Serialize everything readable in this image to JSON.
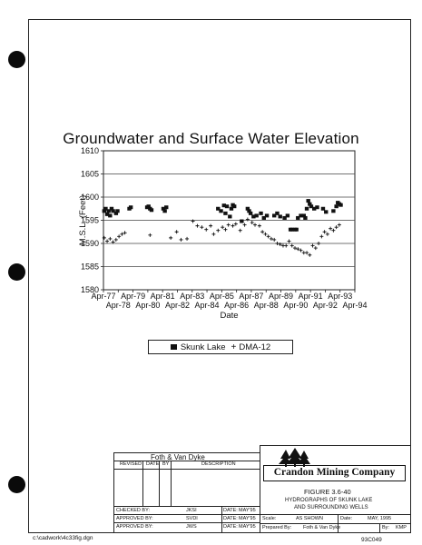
{
  "chart_data": {
    "type": "scatter",
    "title": "Groundwater and Surface Water Elevation",
    "xlabel": "Date",
    "ylabel": "M.S.L. (Feet)",
    "ylim": [
      1580,
      1610
    ],
    "yticks": [
      1580,
      1585,
      1590,
      1595,
      1600,
      1605,
      1610
    ],
    "xlim": [
      "Apr-77",
      "Apr-94"
    ],
    "xticks_upper": [
      "Apr-77",
      "Apr-79",
      "Apr-81",
      "Apr-83",
      "Apr-85",
      "Apr-87",
      "Apr-89",
      "Apr-91",
      "Apr-93"
    ],
    "xticks_lower": [
      "Apr-78",
      "Apr-80",
      "Apr-82",
      "Apr-84",
      "Apr-86",
      "Apr-88",
      "Apr-90",
      "Apr-92",
      "Apr-94"
    ],
    "grid": "horizontal",
    "legend_position": "bottom",
    "series": [
      {
        "name": "Skunk Lake",
        "marker": "square",
        "color": "#111111",
        "x": [
          1977.3,
          1977.4,
          1977.5,
          1977.6,
          1977.7,
          1977.8,
          1977.9,
          1978.1,
          1978.2,
          1979.0,
          1979.1,
          1980.2,
          1980.3,
          1980.4,
          1980.5,
          1981.3,
          1981.4,
          1981.5,
          1985.0,
          1985.2,
          1985.4,
          1985.5,
          1985.6,
          1985.8,
          1985.9,
          1986.0,
          1986.1,
          1986.6,
          1987.0,
          1987.1,
          1987.2,
          1987.4,
          1987.6,
          1987.9,
          1988.1,
          1988.3,
          1988.8,
          1989.0,
          1989.2,
          1989.5,
          1989.7,
          1989.9,
          1990.0,
          1990.2,
          1990.3,
          1990.4,
          1990.6,
          1990.8,
          1990.9,
          1991.0,
          1991.1,
          1991.2,
          1991.3,
          1991.5,
          1991.7,
          1992.1,
          1992.3,
          1992.8,
          1993.0,
          1993.1,
          1993.2,
          1993.3
        ],
        "y": [
          1597.0,
          1597.5,
          1596.3,
          1597.0,
          1596.0,
          1597.5,
          1597.0,
          1596.5,
          1597.0,
          1597.5,
          1597.8,
          1597.8,
          1598.0,
          1597.5,
          1597.2,
          1597.5,
          1597.0,
          1597.8,
          1597.5,
          1597.0,
          1598.2,
          1596.5,
          1598.0,
          1595.8,
          1597.5,
          1598.3,
          1598.0,
          1594.8,
          1597.5,
          1597.0,
          1596.5,
          1595.8,
          1596.0,
          1596.5,
          1595.5,
          1596.0,
          1596.0,
          1596.5,
          1595.8,
          1595.5,
          1596.0,
          1593.0,
          1593.0,
          1593.0,
          1593.0,
          1595.5,
          1596.0,
          1596.0,
          1595.5,
          1597.5,
          1599.2,
          1598.5,
          1598.0,
          1597.5,
          1597.8,
          1597.5,
          1596.8,
          1597.0,
          1598.0,
          1598.8,
          1598.5,
          1598.3
        ]
      },
      {
        "name": "DMA-12",
        "marker": "plus",
        "color": "#111111",
        "x": [
          1977.3,
          1977.5,
          1977.7,
          1977.9,
          1978.1,
          1978.3,
          1978.5,
          1978.7,
          1980.4,
          1981.8,
          1982.2,
          1982.5,
          1982.9,
          1983.3,
          1983.6,
          1983.9,
          1984.2,
          1984.5,
          1984.7,
          1985.0,
          1985.3,
          1985.5,
          1985.7,
          1986.0,
          1986.2,
          1986.5,
          1986.8,
          1987.0,
          1987.3,
          1987.5,
          1987.8,
          1988.0,
          1988.2,
          1988.4,
          1988.6,
          1988.8,
          1989.0,
          1989.2,
          1989.4,
          1989.6,
          1989.8,
          1990.0,
          1990.2,
          1990.4,
          1990.6,
          1990.8,
          1991.0,
          1991.2,
          1991.4,
          1991.6,
          1991.8,
          1992.0,
          1992.2,
          1992.4,
          1992.6,
          1992.8,
          1993.0,
          1993.2
        ],
        "y": [
          1591.2,
          1590.5,
          1591.0,
          1590.3,
          1590.8,
          1591.5,
          1592.0,
          1592.3,
          1591.8,
          1591.2,
          1592.5,
          1590.8,
          1591.0,
          1594.8,
          1593.8,
          1593.5,
          1593.0,
          1593.8,
          1592.0,
          1592.8,
          1593.5,
          1593.0,
          1594.0,
          1593.8,
          1594.2,
          1592.8,
          1594.0,
          1595.2,
          1594.5,
          1594.0,
          1593.8,
          1592.5,
          1592.0,
          1591.5,
          1591.0,
          1590.8,
          1590.0,
          1589.8,
          1589.5,
          1589.5,
          1590.5,
          1589.5,
          1589.0,
          1588.8,
          1588.5,
          1588.0,
          1588.0,
          1587.5,
          1589.5,
          1589.0,
          1590.0,
          1591.5,
          1592.5,
          1592.0,
          1593.2,
          1592.8,
          1593.5,
          1594.0
        ]
      }
    ]
  },
  "legend": {
    "skunk_lake": "Skunk Lake",
    "dma12": "DMA-12"
  },
  "title_block": {
    "firm": "Foth & Van Dyke",
    "company": "Crandon Mining Company",
    "revised_label": "REVISED",
    "date_label": "DATE",
    "by_label": "BY",
    "description_label": "DESCRIPTION",
    "checked_label": "CHECKED BY:",
    "checked_by": "JKSI",
    "checked_date_label": "DATE:",
    "checked_date": "MAY'95",
    "approved_label": "APPROVED BY:",
    "approved_by": "SVDI",
    "approved_date_label": "DATE:",
    "approved_date": "MAY'95",
    "approved2_label": "APPROVED BY:",
    "approved2_by": "JWS",
    "approved2_date_label": "DATE:",
    "approved2_date": "MAY'95",
    "figure": "FIGURE 3.6-40",
    "subtitle_line1": "HYDROGRAPHS OF SKUNK LAKE",
    "subtitle_line2": "AND SURROUNDING WELLS",
    "scale_label": "Scale:",
    "scale_value": "AS SHOWN",
    "date_label2": "Date:",
    "date_value": "MAY, 1995",
    "prepared_label": "Prepared By:",
    "prepared_value": "Foth & Van Dyke",
    "by_label2": "By:",
    "by_value": "KMP"
  },
  "footer": {
    "path": "c:\\cadwork\\4c33fig.dgn",
    "code": "93C049"
  }
}
